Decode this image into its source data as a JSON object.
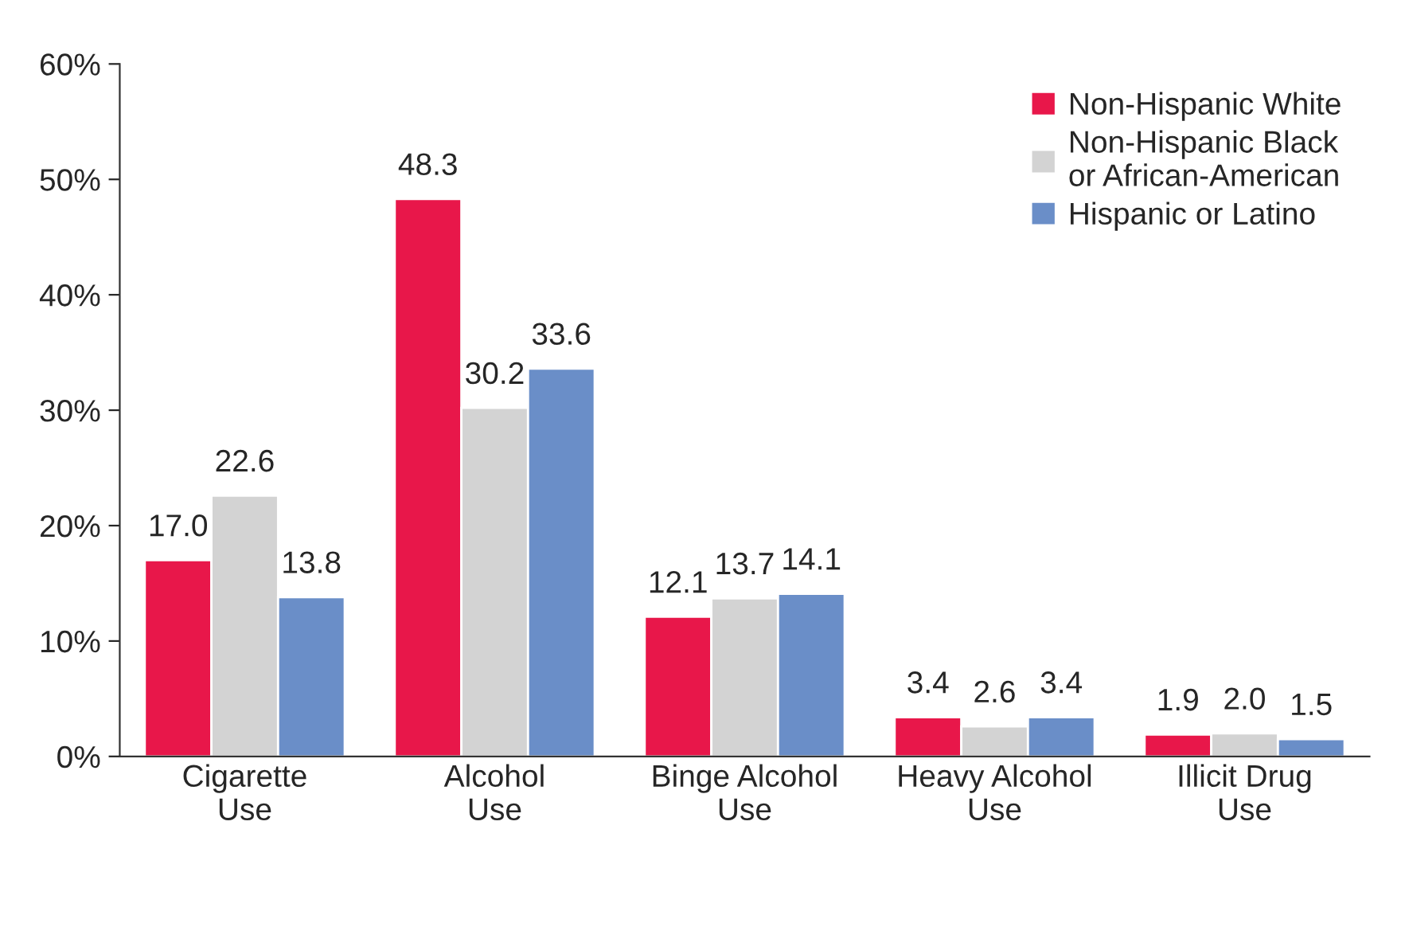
{
  "chart_data": {
    "type": "bar",
    "categories": [
      "Cigarette\nUse",
      "Alcohol\nUse",
      "Binge Alcohol\nUse",
      "Heavy Alcohol\nUse",
      "Illicit Drug\nUse"
    ],
    "series": [
      {
        "name": "Non-Hispanic White",
        "color": "#e8174a",
        "values": [
          17.0,
          48.3,
          12.1,
          3.4,
          1.9
        ],
        "value_labels": [
          "17.0",
          "48.3",
          "12.1",
          "3.4",
          "1.9"
        ]
      },
      {
        "name": "Non-Hispanic Black\nor African-American",
        "color": "#d3d3d3",
        "values": [
          22.6,
          30.2,
          13.7,
          2.6,
          2.0
        ],
        "value_labels": [
          "22.6",
          "30.2",
          "13.7",
          "2.6",
          "2.0"
        ]
      },
      {
        "name": "Hispanic or Latino",
        "color": "#6a8ec8",
        "values": [
          13.8,
          33.6,
          14.1,
          3.4,
          1.5
        ],
        "value_labels": [
          "13.8",
          "33.6",
          "14.1",
          "3.4",
          "1.5"
        ]
      }
    ],
    "ylim": [
      0,
      60
    ],
    "yticks": [
      {
        "value": 0,
        "label": "0%"
      },
      {
        "value": 10,
        "label": "10%"
      },
      {
        "value": 20,
        "label": "20%"
      },
      {
        "value": 30,
        "label": "30%"
      },
      {
        "value": 40,
        "label": "40%"
      },
      {
        "value": 50,
        "label": "50%"
      },
      {
        "value": 60,
        "label": "60%"
      }
    ],
    "legend": "top right",
    "grid": false
  }
}
